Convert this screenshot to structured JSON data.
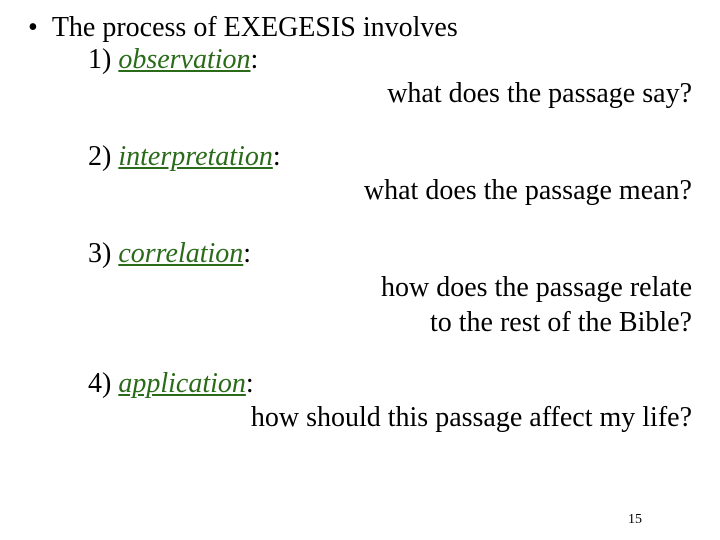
{
  "intro": "The process of EXEGESIS involves",
  "colors": {
    "step_word": "#2a6b1a",
    "text": "#000000",
    "background": "#ffffff"
  },
  "typography": {
    "font_family": "Times New Roman",
    "body_fontsize": 28,
    "page_num_fontsize": 14
  },
  "steps": [
    {
      "num": "1)",
      "word": "observation",
      "colon": ":",
      "question": "what does the passage say?"
    },
    {
      "num": "2)",
      "word": "interpretation",
      "colon": ":",
      "question": "what does the passage mean?"
    },
    {
      "num": "3)",
      "word": "correlation",
      "colon": ":",
      "question_l1": "how does the passage relate",
      "question_l2": "to the rest of the Bible?"
    },
    {
      "num": "4)",
      "word": "application",
      "colon": ":",
      "question": "how should this passage affect my life?"
    }
  ],
  "page_number": "15"
}
